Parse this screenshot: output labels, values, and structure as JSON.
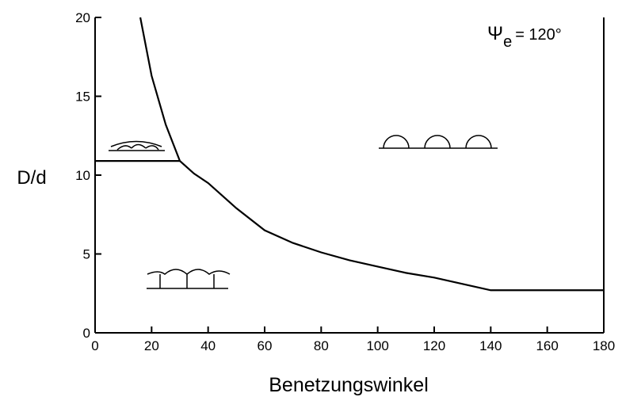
{
  "chart_data": {
    "type": "line",
    "annotation": {
      "symbol": "Ψ",
      "subscript": "e",
      "text": "= 120°"
    },
    "xlabel": "Benetzungswinkel",
    "ylabel": "D/d",
    "xlim": [
      0,
      180
    ],
    "ylim": [
      0,
      20
    ],
    "xticks": [
      0,
      20,
      40,
      60,
      80,
      100,
      120,
      140,
      160,
      180
    ],
    "yticks": [
      0,
      5,
      10,
      15,
      20
    ],
    "series": [
      {
        "color": "#000000",
        "x": [
          16,
          20,
          25,
          30,
          35,
          40,
          50,
          60,
          70,
          80,
          90,
          100,
          110,
          120,
          130,
          140,
          180
        ],
        "values": [
          20,
          16.3,
          13.2,
          10.9,
          10.1,
          9.5,
          7.9,
          6.5,
          5.7,
          5.1,
          4.6,
          4.2,
          3.8,
          3.5,
          3.1,
          2.7,
          2.7
        ]
      },
      {
        "color": "#000000",
        "x": [
          0,
          30
        ],
        "values": [
          10.9,
          10.9
        ]
      }
    ]
  }
}
